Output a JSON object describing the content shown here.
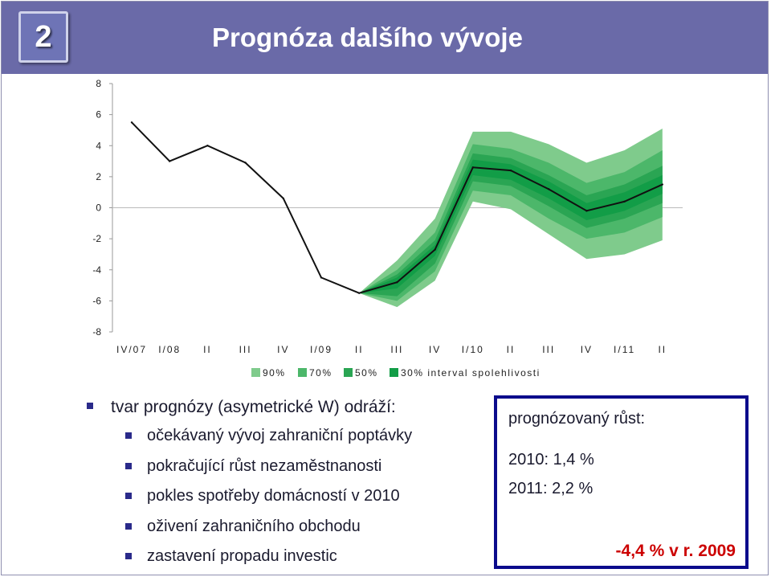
{
  "header": {
    "slide_number": "2",
    "title": "Prognóza dalšího vývoje"
  },
  "chart_data": {
    "type": "line",
    "title": "",
    "xlabel": "",
    "ylabel": "",
    "ylim": [
      -8,
      8
    ],
    "yticks": [
      -8,
      -6,
      -4,
      -2,
      0,
      2,
      4,
      6,
      8
    ],
    "yticklabels": [
      "-8",
      "-6",
      "-4",
      "-2",
      "0",
      "2",
      "4",
      "6",
      "8"
    ],
    "categories": [
      "IV/07",
      "I/08",
      "II",
      "III",
      "IV",
      "I/09",
      "II",
      "III",
      "IV",
      "I/10",
      "II",
      "III",
      "IV",
      "I/11",
      "II"
    ],
    "series": [
      {
        "values": [
          5.5,
          3.0,
          4.0,
          2.9,
          0.6,
          -4.5,
          -5.5,
          -4.8,
          -2.7,
          2.6,
          2.4,
          1.2,
          -0.2,
          0.4,
          1.5
        ]
      }
    ],
    "fan_start_index": 6,
    "fan_bands": [
      {
        "name": "90%",
        "color": "#7fcb8c",
        "upper": [
          -5.5,
          -3.4,
          -0.7,
          4.9,
          4.9,
          4.1,
          2.9,
          3.7,
          5.1
        ],
        "lower": [
          -5.5,
          -6.4,
          -4.7,
          0.4,
          -0.1,
          -1.7,
          -3.3,
          -3.0,
          -2.1
        ]
      },
      {
        "name": "70%",
        "color": "#4cb76a",
        "upper": [
          -5.5,
          -4.0,
          -1.6,
          4.1,
          3.8,
          2.9,
          1.6,
          2.3,
          3.7
        ],
        "lower": [
          -5.5,
          -6.0,
          -4.1,
          1.1,
          0.8,
          -0.7,
          -2.0,
          -1.6,
          -0.6
        ]
      },
      {
        "name": "50%",
        "color": "#2aa553",
        "upper": [
          -5.5,
          -4.3,
          -2.1,
          3.5,
          3.2,
          2.1,
          0.8,
          1.5,
          2.7
        ],
        "lower": [
          -5.5,
          -5.7,
          -3.6,
          1.7,
          1.4,
          0.1,
          -1.3,
          -0.7,
          0.3
        ]
      },
      {
        "name": "30%",
        "color": "#129d47",
        "upper": [
          -5.5,
          -4.5,
          -2.4,
          3.1,
          2.8,
          1.7,
          0.3,
          1.0,
          2.1
        ],
        "lower": [
          -5.5,
          -5.2,
          -3.1,
          2.1,
          1.8,
          0.6,
          -0.8,
          -0.2,
          0.9
        ]
      }
    ],
    "legend": {
      "placement": "bottom",
      "items": [
        {
          "label": "90%",
          "color": "#7fcb8c"
        },
        {
          "label": "70%",
          "color": "#4cb76a"
        },
        {
          "label": "50%",
          "color": "#2aa553"
        },
        {
          "label": "30% interval spolehlivosti",
          "color": "#129d47"
        }
      ]
    },
    "grid": false,
    "zero_line": true
  },
  "bullets": {
    "main": "tvar prognózy (asymetrické W) odráží:",
    "sub": [
      "očekávaný vývoj zahraniční poptávky",
      "pokračující růst nezaměstnanosti",
      "pokles spotřeby domácností v 2010",
      "oživení zahraničního obchodu",
      "zastavení propadu investic"
    ]
  },
  "forecast_box": {
    "title": "prognózovaný růst:",
    "line_2010": "2010: 1,4 %",
    "line_2011": "2011: 2,2 %",
    "line_2009": "-4,4 % v r. 2009"
  },
  "colors": {
    "header_bg": "#6a6aa8",
    "line": "#111111",
    "bullet_square": "#2a2a8a",
    "box_border": "#0b0b8c",
    "highlight_red": "#cc0000"
  }
}
